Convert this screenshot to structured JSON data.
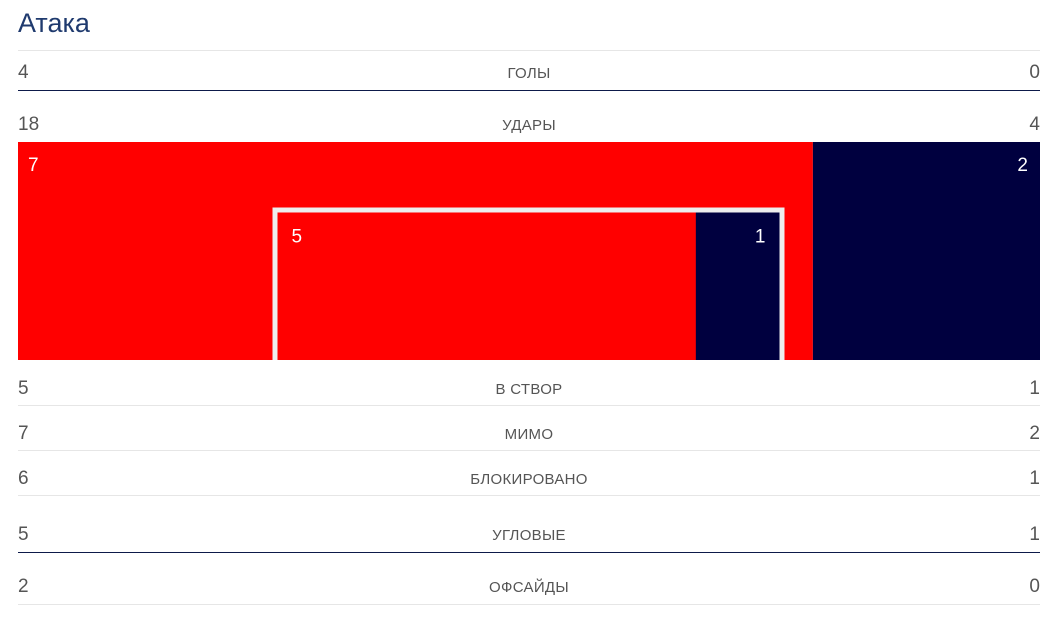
{
  "section_title": "Атака",
  "colors": {
    "home": "#ff0000",
    "away": "#00003f",
    "goal_frame": "#eeeeee",
    "divider_dark": "#0d1a4a",
    "divider_light": "#e6e6e6"
  },
  "rows": {
    "goals": {
      "label": "ГОЛЫ",
      "home": "4",
      "away": "0"
    },
    "shots": {
      "label": "УДАРЫ",
      "home": "18",
      "away": "4"
    },
    "on_target": {
      "label": "В СТВОР",
      "home": "5",
      "away": "1"
    },
    "off_target": {
      "label": "МИМО",
      "home": "7",
      "away": "2"
    },
    "blocked": {
      "label": "БЛОКИРОВАНО",
      "home": "6",
      "away": "1"
    },
    "corners": {
      "label": "УГЛОВЫЕ",
      "home": "5",
      "away": "1"
    },
    "offsides": {
      "label": "ОФСАЙДЫ",
      "home": "2",
      "away": "0"
    }
  },
  "chart_data": {
    "type": "bar",
    "title": "",
    "series": [
      {
        "name": "",
        "values": [
          7,
          5
        ]
      },
      {
        "name": "",
        "values": [
          2,
          1
        ]
      }
    ],
    "categories": [
      "МИМО",
      "В СТВОР"
    ],
    "stacked": "100%",
    "labels": {
      "off_target_home": "7",
      "off_target_away": "2",
      "on_target_home": "5",
      "on_target_away": "1"
    }
  }
}
